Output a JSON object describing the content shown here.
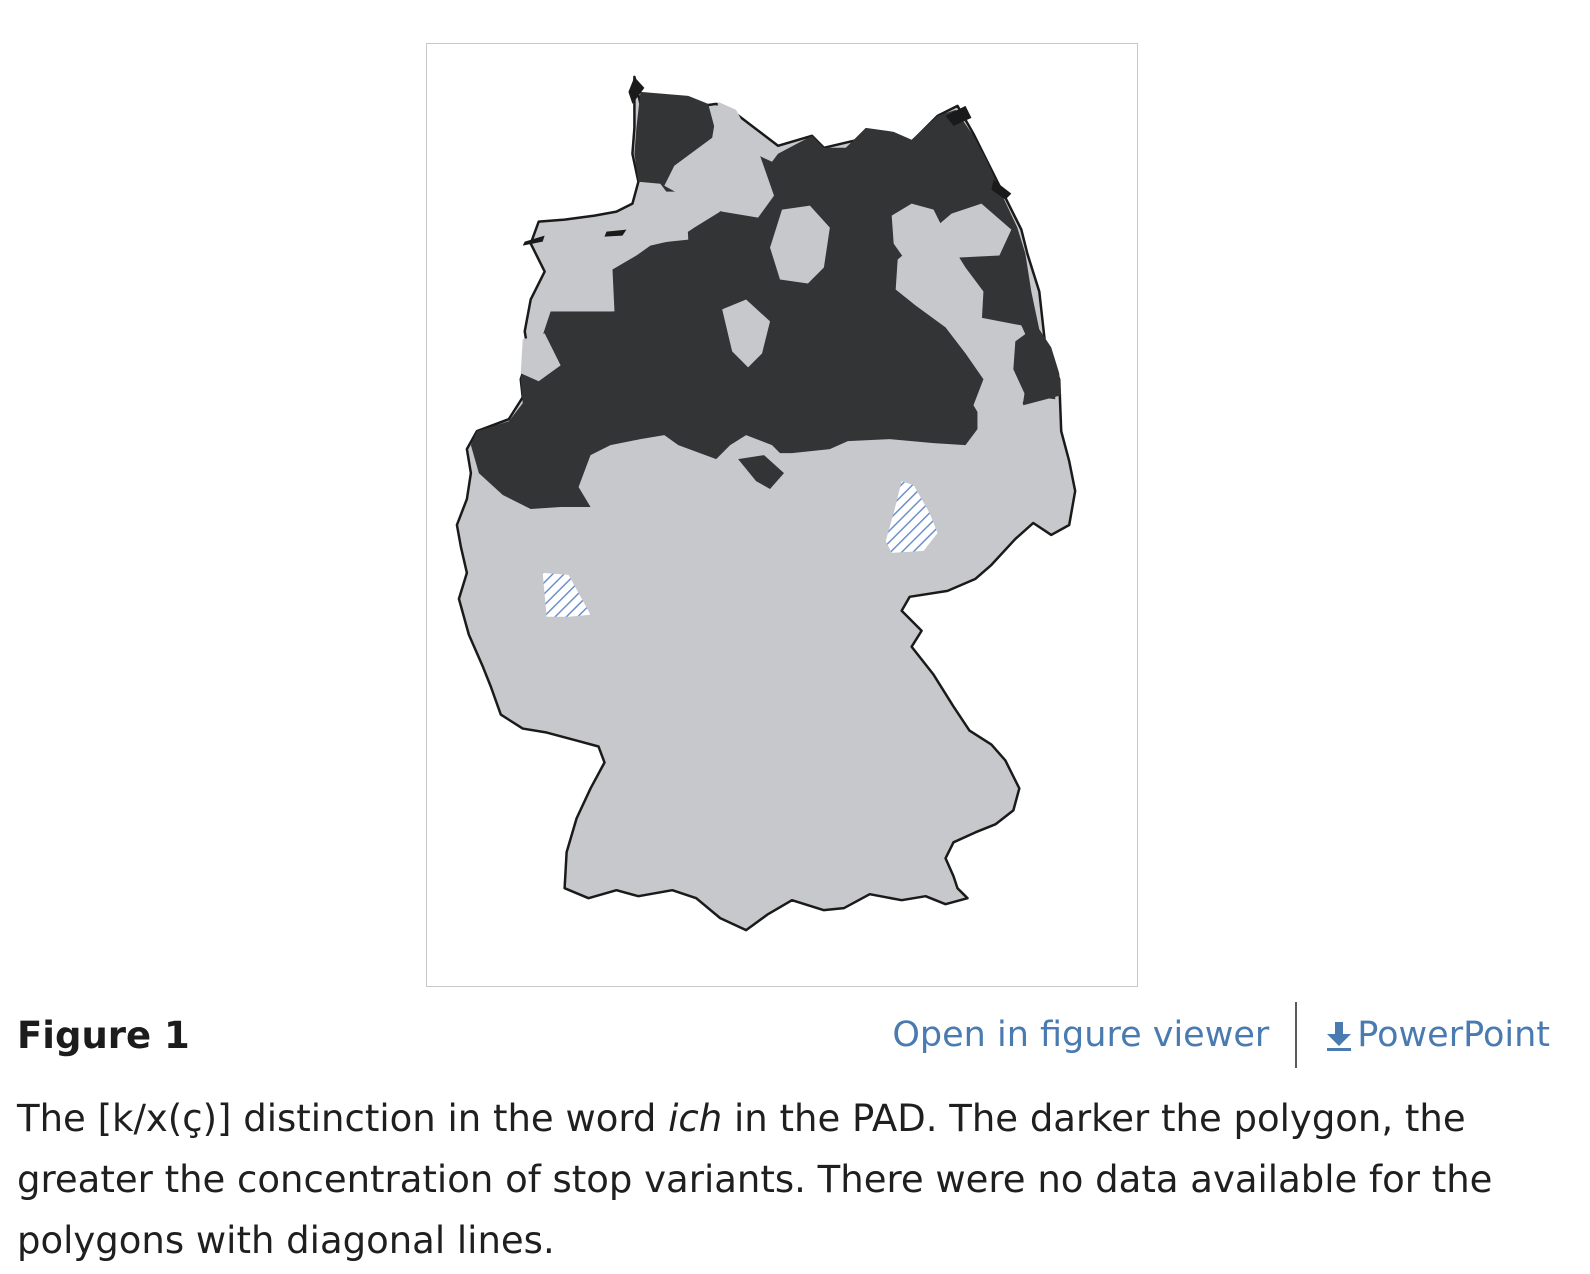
{
  "figure": {
    "label": "Figure 1",
    "open_viewer_label": "Open in figure viewer",
    "download_label": "PowerPoint",
    "download_icon": "download-arrow-icon",
    "caption": {
      "part1": "The [k/x(ç)] distinction in the word ",
      "emphasis": "ich",
      "part2": " in the PAD. The darker the polygon, the greater the concentration of stop variants. There were no data available for the polygons with diagonal lines."
    }
  },
  "map": {
    "subject": "Germany",
    "legend_meaning": {
      "dark": "higher concentration of stop variants",
      "light": "lower concentration of stop variants",
      "hatched": "no data available"
    },
    "colors": {
      "dark_polygon": "#333436",
      "light_polygon": "#c6c8cb",
      "border": "#1a1a1a",
      "hatch": "#6f8fcb",
      "link": "#4a7bb0"
    }
  }
}
